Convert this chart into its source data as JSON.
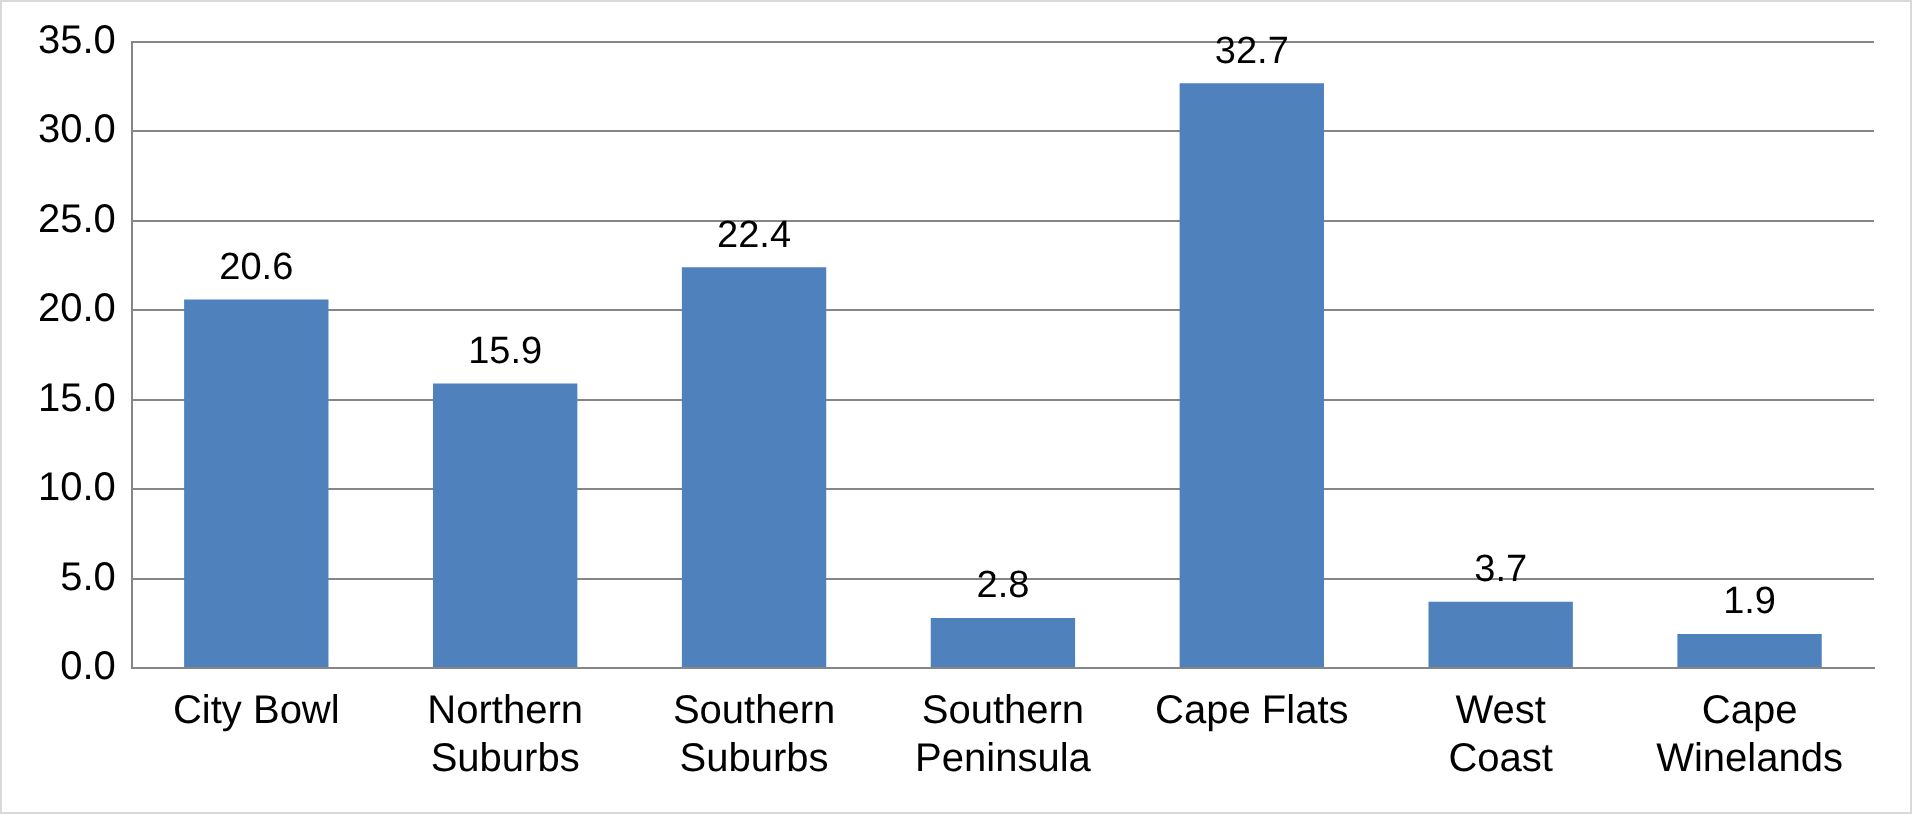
{
  "chart_data": {
    "type": "bar",
    "categories": [
      "City Bowl",
      "Northern\nSuburbs",
      "Southern\nSuburbs",
      "Southern\nPeninsula",
      "Cape Flats",
      "West\nCoast",
      "Cape\nWinelands"
    ],
    "values": [
      20.6,
      15.9,
      22.4,
      2.8,
      32.7,
      3.7,
      1.9
    ],
    "color": "#4f81bd",
    "ylim": [
      0,
      35
    ],
    "yticks": [
      {
        "value": 0,
        "label": "0.0"
      },
      {
        "value": 5,
        "label": "5.0"
      },
      {
        "value": 10,
        "label": "10.0"
      },
      {
        "value": 15,
        "label": "15.0"
      },
      {
        "value": 20,
        "label": "20.0"
      },
      {
        "value": 25,
        "label": "25.0"
      },
      {
        "value": 30,
        "label": "30.0"
      },
      {
        "value": 35,
        "label": "35.0"
      }
    ],
    "grid": "y",
    "legend": false,
    "data_labels": true
  }
}
